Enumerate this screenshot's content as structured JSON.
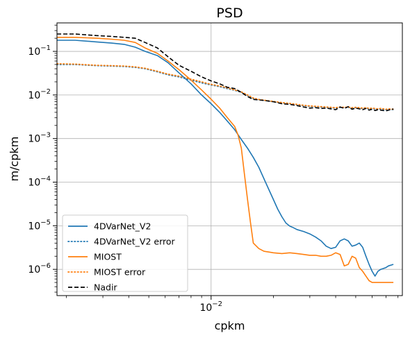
{
  "chart_data": {
    "type": "line",
    "title": "PSD",
    "xlabel": "cpkm",
    "ylabel": "m/cpkm",
    "xscale": "log",
    "yscale": "log",
    "xlim": [
      0.0018,
      0.084
    ],
    "ylim": [
      2.5e-07,
      0.45
    ],
    "grid": true,
    "legend_position": "lower-left",
    "x_major_ticks": [
      {
        "value": 0.01,
        "base": "10",
        "exp": "−2"
      }
    ],
    "y_major_ticks": [
      {
        "value": 1e-06,
        "base": "10",
        "exp": "−6"
      },
      {
        "value": 1e-05,
        "base": "10",
        "exp": "−5"
      },
      {
        "value": 0.0001,
        "base": "10",
        "exp": "−4"
      },
      {
        "value": 0.001,
        "base": "10",
        "exp": "−3"
      },
      {
        "value": 0.01,
        "base": "10",
        "exp": "−2"
      },
      {
        "value": 0.1,
        "base": "10",
        "exp": "−1"
      }
    ],
    "series": [
      {
        "name": "4DVarNet_V2",
        "color": "#1f77b4",
        "style": "solid",
        "x": [
          0.0018,
          0.0022,
          0.0028,
          0.0033,
          0.0038,
          0.0043,
          0.0048,
          0.0055,
          0.0062,
          0.007,
          0.008,
          0.009,
          0.01,
          0.011,
          0.012,
          0.013,
          0.014,
          0.015,
          0.016,
          0.017,
          0.018,
          0.019,
          0.02,
          0.021,
          0.022,
          0.023,
          0.024,
          0.025,
          0.026,
          0.028,
          0.03,
          0.032,
          0.034,
          0.036,
          0.038,
          0.04,
          0.042,
          0.044,
          0.046,
          0.048,
          0.05,
          0.052,
          0.054,
          0.056,
          0.058,
          0.06,
          0.062,
          0.064,
          0.066,
          0.07,
          0.072,
          0.076
        ],
        "y": [
          0.18,
          0.18,
          0.165,
          0.155,
          0.145,
          0.125,
          0.1,
          0.08,
          0.055,
          0.032,
          0.018,
          0.01,
          0.0063,
          0.004,
          0.0025,
          0.0016,
          0.00095,
          0.0006,
          0.00037,
          0.00022,
          0.00012,
          6.8e-05,
          4e-05,
          2.4e-05,
          1.6e-05,
          1.15e-05,
          9.8e-06,
          9e-06,
          8.2e-06,
          7.4e-06,
          6.5e-06,
          5.5e-06,
          4.5e-06,
          3.4e-06,
          3e-06,
          3.2e-06,
          4.5e-06,
          5e-06,
          4.5e-06,
          3.4e-06,
          3.6e-06,
          4e-06,
          3.2e-06,
          2e-06,
          1.3e-06,
          9e-07,
          7e-07,
          9e-07,
          1e-06,
          1.1e-06,
          1.2e-06,
          1.3e-06
        ]
      },
      {
        "name": "4DVarNet_V2 error",
        "color": "#1f77b4",
        "style": "dotted",
        "x": [
          0.0018,
          0.0022,
          0.0028,
          0.0033,
          0.0038,
          0.0043,
          0.0048,
          0.0055,
          0.0062,
          0.007,
          0.008,
          0.009,
          0.01,
          0.011,
          0.012,
          0.013,
          0.014,
          0.015,
          0.016,
          0.017,
          0.018,
          0.02,
          0.022,
          0.024,
          0.026,
          0.028,
          0.03,
          0.032,
          0.034,
          0.036,
          0.038,
          0.04,
          0.042,
          0.044,
          0.046,
          0.048,
          0.05,
          0.052,
          0.054,
          0.056,
          0.058,
          0.06,
          0.062,
          0.064,
          0.066,
          0.07,
          0.072,
          0.076
        ],
        "y": [
          0.05,
          0.05,
          0.047,
          0.046,
          0.045,
          0.043,
          0.04,
          0.034,
          0.029,
          0.026,
          0.022,
          0.019,
          0.017,
          0.0155,
          0.014,
          0.0128,
          0.0115,
          0.0098,
          0.0083,
          0.0078,
          0.0075,
          0.007,
          0.0066,
          0.0063,
          0.006,
          0.0057,
          0.0055,
          0.0054,
          0.0053,
          0.0052,
          0.0051,
          0.005,
          0.0052,
          0.0051,
          0.0052,
          0.005,
          0.0051,
          0.005,
          0.0049,
          0.005,
          0.0048,
          0.0049,
          0.0048,
          0.0047,
          0.0048,
          0.0046,
          0.0047,
          0.0046
        ]
      },
      {
        "name": "MIOST",
        "color": "#ff7f0e",
        "style": "solid",
        "x": [
          0.0018,
          0.0022,
          0.0028,
          0.0033,
          0.0038,
          0.0043,
          0.0048,
          0.0055,
          0.0062,
          0.007,
          0.008,
          0.009,
          0.01,
          0.011,
          0.012,
          0.013,
          0.0135,
          0.014,
          0.0145,
          0.015,
          0.0155,
          0.016,
          0.017,
          0.018,
          0.019,
          0.02,
          0.022,
          0.024,
          0.026,
          0.028,
          0.03,
          0.032,
          0.034,
          0.036,
          0.038,
          0.04,
          0.042,
          0.044,
          0.046,
          0.048,
          0.05,
          0.052,
          0.054,
          0.056,
          0.058,
          0.06,
          0.062,
          0.064,
          0.066,
          0.07,
          0.072,
          0.076
        ],
        "y": [
          0.21,
          0.21,
          0.2,
          0.19,
          0.18,
          0.16,
          0.12,
          0.09,
          0.06,
          0.038,
          0.022,
          0.013,
          0.008,
          0.005,
          0.003,
          0.0019,
          0.0012,
          0.0006,
          0.00015,
          4e-05,
          1.2e-05,
          4e-06,
          3e-06,
          2.6e-06,
          2.5e-06,
          2.4e-06,
          2.3e-06,
          2.4e-06,
          2.3e-06,
          2.2e-06,
          2.1e-06,
          2.1e-06,
          2e-06,
          2e-06,
          2.1e-06,
          2.4e-06,
          2.2e-06,
          1.2e-06,
          1.3e-06,
          2e-06,
          1.8e-06,
          1.1e-06,
          9e-07,
          7e-07,
          5.5e-07,
          5e-07,
          5e-07,
          5e-07,
          5e-07,
          5e-07,
          5e-07,
          5e-07
        ]
      },
      {
        "name": "MIOST error",
        "color": "#ff7f0e",
        "style": "dotted",
        "x": [
          0.0018,
          0.0022,
          0.0028,
          0.0033,
          0.0038,
          0.0043,
          0.0048,
          0.0055,
          0.0062,
          0.007,
          0.008,
          0.009,
          0.01,
          0.011,
          0.012,
          0.013,
          0.014,
          0.015,
          0.016,
          0.017,
          0.018,
          0.02,
          0.022,
          0.024,
          0.026,
          0.028,
          0.03,
          0.032,
          0.034,
          0.036,
          0.038,
          0.04,
          0.042,
          0.044,
          0.046,
          0.048,
          0.05,
          0.052,
          0.054,
          0.056,
          0.058,
          0.06,
          0.062,
          0.064,
          0.066,
          0.07,
          0.072,
          0.076
        ],
        "y": [
          0.052,
          0.051,
          0.048,
          0.047,
          0.046,
          0.044,
          0.041,
          0.035,
          0.03,
          0.027,
          0.023,
          0.02,
          0.0175,
          0.016,
          0.0145,
          0.013,
          0.0118,
          0.01,
          0.0085,
          0.0079,
          0.0076,
          0.0071,
          0.0067,
          0.0064,
          0.0061,
          0.0058,
          0.0056,
          0.0055,
          0.0054,
          0.0053,
          0.0052,
          0.0051,
          0.0053,
          0.0052,
          0.0053,
          0.0051,
          0.0052,
          0.0051,
          0.005,
          0.0051,
          0.0049,
          0.005,
          0.0049,
          0.0048,
          0.0049,
          0.0047,
          0.0048,
          0.0047
        ]
      },
      {
        "name": "Nadir",
        "color": "#000000",
        "style": "dashed",
        "x": [
          0.0018,
          0.0022,
          0.0028,
          0.0033,
          0.0038,
          0.0043,
          0.0048,
          0.0055,
          0.0062,
          0.007,
          0.008,
          0.009,
          0.01,
          0.011,
          0.012,
          0.013,
          0.014,
          0.015,
          0.016,
          0.017,
          0.018,
          0.02,
          0.022,
          0.024,
          0.026,
          0.028,
          0.03,
          0.032,
          0.034,
          0.036,
          0.038,
          0.04,
          0.042,
          0.044,
          0.046,
          0.048,
          0.05,
          0.052,
          0.054,
          0.056,
          0.058,
          0.06,
          0.062,
          0.064,
          0.066,
          0.07,
          0.072,
          0.076
        ],
        "y": [
          0.25,
          0.25,
          0.23,
          0.22,
          0.21,
          0.2,
          0.16,
          0.12,
          0.075,
          0.048,
          0.035,
          0.026,
          0.021,
          0.018,
          0.015,
          0.014,
          0.0115,
          0.0092,
          0.0079,
          0.0077,
          0.0075,
          0.007,
          0.0063,
          0.0061,
          0.0057,
          0.0053,
          0.005,
          0.0051,
          0.0049,
          0.005,
          0.0048,
          0.0046,
          0.0053,
          0.0049,
          0.0054,
          0.0047,
          0.005,
          0.0048,
          0.0046,
          0.0049,
          0.0045,
          0.0047,
          0.0044,
          0.0046,
          0.0045,
          0.0043,
          0.0045,
          0.0048
        ]
      }
    ]
  }
}
